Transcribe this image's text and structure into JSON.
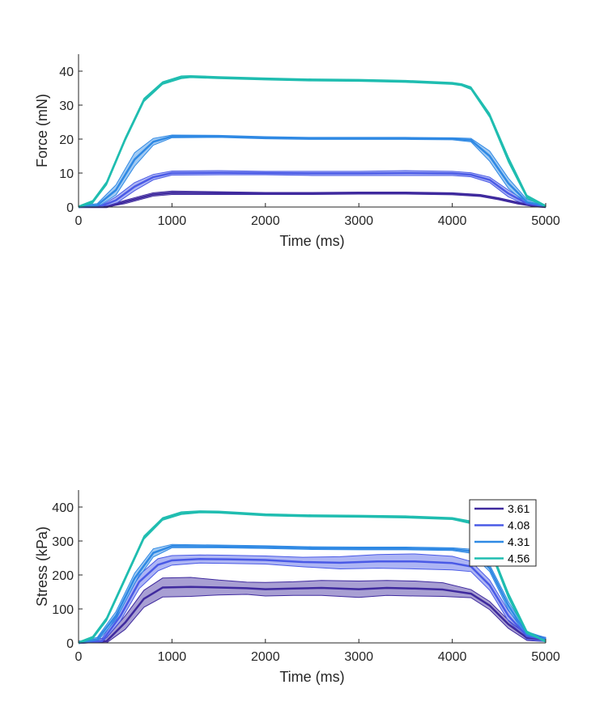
{
  "chart_data": [
    {
      "type": "line",
      "xlabel": "Time (ms)",
      "ylabel": "Force (mN)",
      "xlim": [
        0,
        5000
      ],
      "ylim": [
        0,
        45
      ],
      "xticks": [
        0,
        1000,
        2000,
        3000,
        4000,
        5000
      ],
      "yticks": [
        0,
        10,
        20,
        30,
        40
      ],
      "grid": false,
      "legend": null,
      "series": [
        {
          "color": "#3f2a9e",
          "x": [
            0,
            300,
            500,
            700,
            800,
            1000,
            1500,
            2000,
            2500,
            3000,
            3500,
            4000,
            4300,
            4500,
            4700,
            4900,
            5000
          ],
          "y": [
            0,
            0,
            1.5,
            3,
            3.7,
            4.2,
            4.1,
            4,
            4,
            4.1,
            4.1,
            3.9,
            3.4,
            2.4,
            1.2,
            0.2,
            0
          ],
          "band": [
            0.3,
            0.3,
            0.5,
            0.5,
            0.5,
            0.5,
            0.4,
            0.3,
            0.3,
            0.3,
            0.3,
            0.3,
            0.3,
            0.3,
            0.3,
            0.2,
            0.2
          ]
        },
        {
          "color": "#4a5ae6",
          "x": [
            0,
            250,
            400,
            600,
            800,
            1000,
            1500,
            2000,
            2500,
            3000,
            3500,
            4000,
            4200,
            4400,
            4600,
            4800,
            5000
          ],
          "y": [
            0,
            0.3,
            2,
            6,
            8.8,
            10,
            10.1,
            10,
            9.9,
            9.9,
            10,
            9.9,
            9.5,
            8,
            4,
            1,
            0.2
          ],
          "band": [
            0.3,
            0.3,
            1,
            1.2,
            0.8,
            0.6,
            0.6,
            0.5,
            0.6,
            0.6,
            0.7,
            0.6,
            0.6,
            0.8,
            1,
            0.5,
            0.3
          ]
        },
        {
          "color": "#2f89e4",
          "x": [
            0,
            200,
            400,
            600,
            800,
            1000,
            1500,
            2000,
            2500,
            3000,
            3500,
            4000,
            4200,
            4400,
            4600,
            4800,
            5000
          ],
          "y": [
            0,
            0.5,
            5,
            14,
            19.2,
            20.8,
            20.8,
            20.4,
            20.2,
            20.2,
            20.2,
            20.1,
            19.7,
            15,
            7,
            1.5,
            0.3
          ],
          "band": [
            0.3,
            0.5,
            1.5,
            2,
            1,
            0.4,
            0.3,
            0.3,
            0.3,
            0.3,
            0.3,
            0.3,
            0.5,
            1.5,
            1.5,
            0.7,
            0.3
          ]
        },
        {
          "color": "#1fbdb0",
          "x": [
            0,
            150,
            300,
            500,
            700,
            900,
            1100,
            1200,
            1500,
            2000,
            2500,
            3000,
            3500,
            4000,
            4100,
            4200,
            4400,
            4600,
            4800,
            5000
          ],
          "y": [
            0,
            1.5,
            7,
            20,
            31.5,
            36.5,
            38.2,
            38.4,
            38.1,
            37.7,
            37.4,
            37.3,
            37,
            36.4,
            36,
            35,
            27,
            14,
            3,
            0.2
          ],
          "band": [
            0.3,
            0.4,
            0.5,
            0.5,
            0.5,
            0.4,
            0.4,
            0.3,
            0.3,
            0.3,
            0.3,
            0.3,
            0.3,
            0.3,
            0.3,
            0.4,
            0.6,
            0.8,
            0.5,
            0.3
          ]
        }
      ]
    },
    {
      "type": "line",
      "xlabel": "Time (ms)",
      "ylabel": "Stress (kPa)",
      "xlim": [
        0,
        5000
      ],
      "ylim": [
        0,
        450
      ],
      "xticks": [
        0,
        1000,
        2000,
        3000,
        4000,
        5000
      ],
      "yticks": [
        0,
        100,
        200,
        300,
        400
      ],
      "grid": false,
      "legend": {
        "position": "top-right",
        "entries": [
          "3.61",
          "4.08",
          "4.31",
          "4.56"
        ]
      },
      "series": [
        {
          "name": "3.61",
          "color": "#3f2a9e",
          "x": [
            0,
            300,
            500,
            700,
            900,
            1200,
            1500,
            1800,
            2000,
            2300,
            2600,
            3000,
            3300,
            3600,
            3900,
            4200,
            4400,
            4600,
            4800,
            5000
          ],
          "y": [
            0,
            5,
            60,
            130,
            163,
            165,
            163,
            161,
            158,
            160,
            162,
            158,
            162,
            160,
            157,
            145,
            110,
            55,
            15,
            10
          ],
          "band": [
            5,
            10,
            20,
            25,
            28,
            28,
            22,
            18,
            20,
            20,
            22,
            24,
            22,
            22,
            20,
            12,
            12,
            12,
            8,
            6
          ]
        },
        {
          "name": "4.08",
          "color": "#4a5ae6",
          "x": [
            0,
            250,
            450,
            650,
            850,
            1000,
            1300,
            1600,
            2000,
            2400,
            2800,
            3200,
            3600,
            4000,
            4200,
            4400,
            4600,
            4800,
            5000
          ],
          "y": [
            0,
            5,
            80,
            180,
            230,
            243,
            247,
            246,
            244,
            238,
            236,
            240,
            240,
            235,
            225,
            170,
            80,
            20,
            10
          ],
          "band": [
            5,
            8,
            15,
            20,
            18,
            14,
            12,
            12,
            12,
            14,
            18,
            20,
            22,
            20,
            15,
            15,
            15,
            10,
            6
          ]
        },
        {
          "name": "4.31",
          "color": "#2f89e4",
          "x": [
            0,
            200,
            400,
            600,
            800,
            1000,
            1500,
            2000,
            2500,
            3000,
            3500,
            4000,
            4200,
            4400,
            4600,
            4800,
            5000
          ],
          "y": [
            0,
            10,
            80,
            190,
            265,
            285,
            284,
            282,
            279,
            278,
            278,
            276,
            270,
            220,
            110,
            25,
            10
          ],
          "band": [
            4,
            6,
            12,
            15,
            12,
            5,
            4,
            4,
            4,
            4,
            4,
            4,
            6,
            10,
            12,
            8,
            5
          ]
        },
        {
          "name": "4.56",
          "color": "#1fbdb0",
          "x": [
            0,
            150,
            300,
            500,
            700,
            900,
            1100,
            1300,
            1500,
            2000,
            2500,
            3000,
            3500,
            4000,
            4200,
            4400,
            4600,
            4800,
            5000
          ],
          "y": [
            0,
            15,
            70,
            190,
            310,
            365,
            382,
            386,
            385,
            377,
            374,
            373,
            371,
            366,
            355,
            280,
            140,
            30,
            5
          ],
          "band": [
            3,
            4,
            5,
            5,
            5,
            4,
            4,
            3,
            3,
            3,
            3,
            3,
            3,
            3,
            4,
            6,
            8,
            5,
            3
          ]
        }
      ]
    }
  ]
}
